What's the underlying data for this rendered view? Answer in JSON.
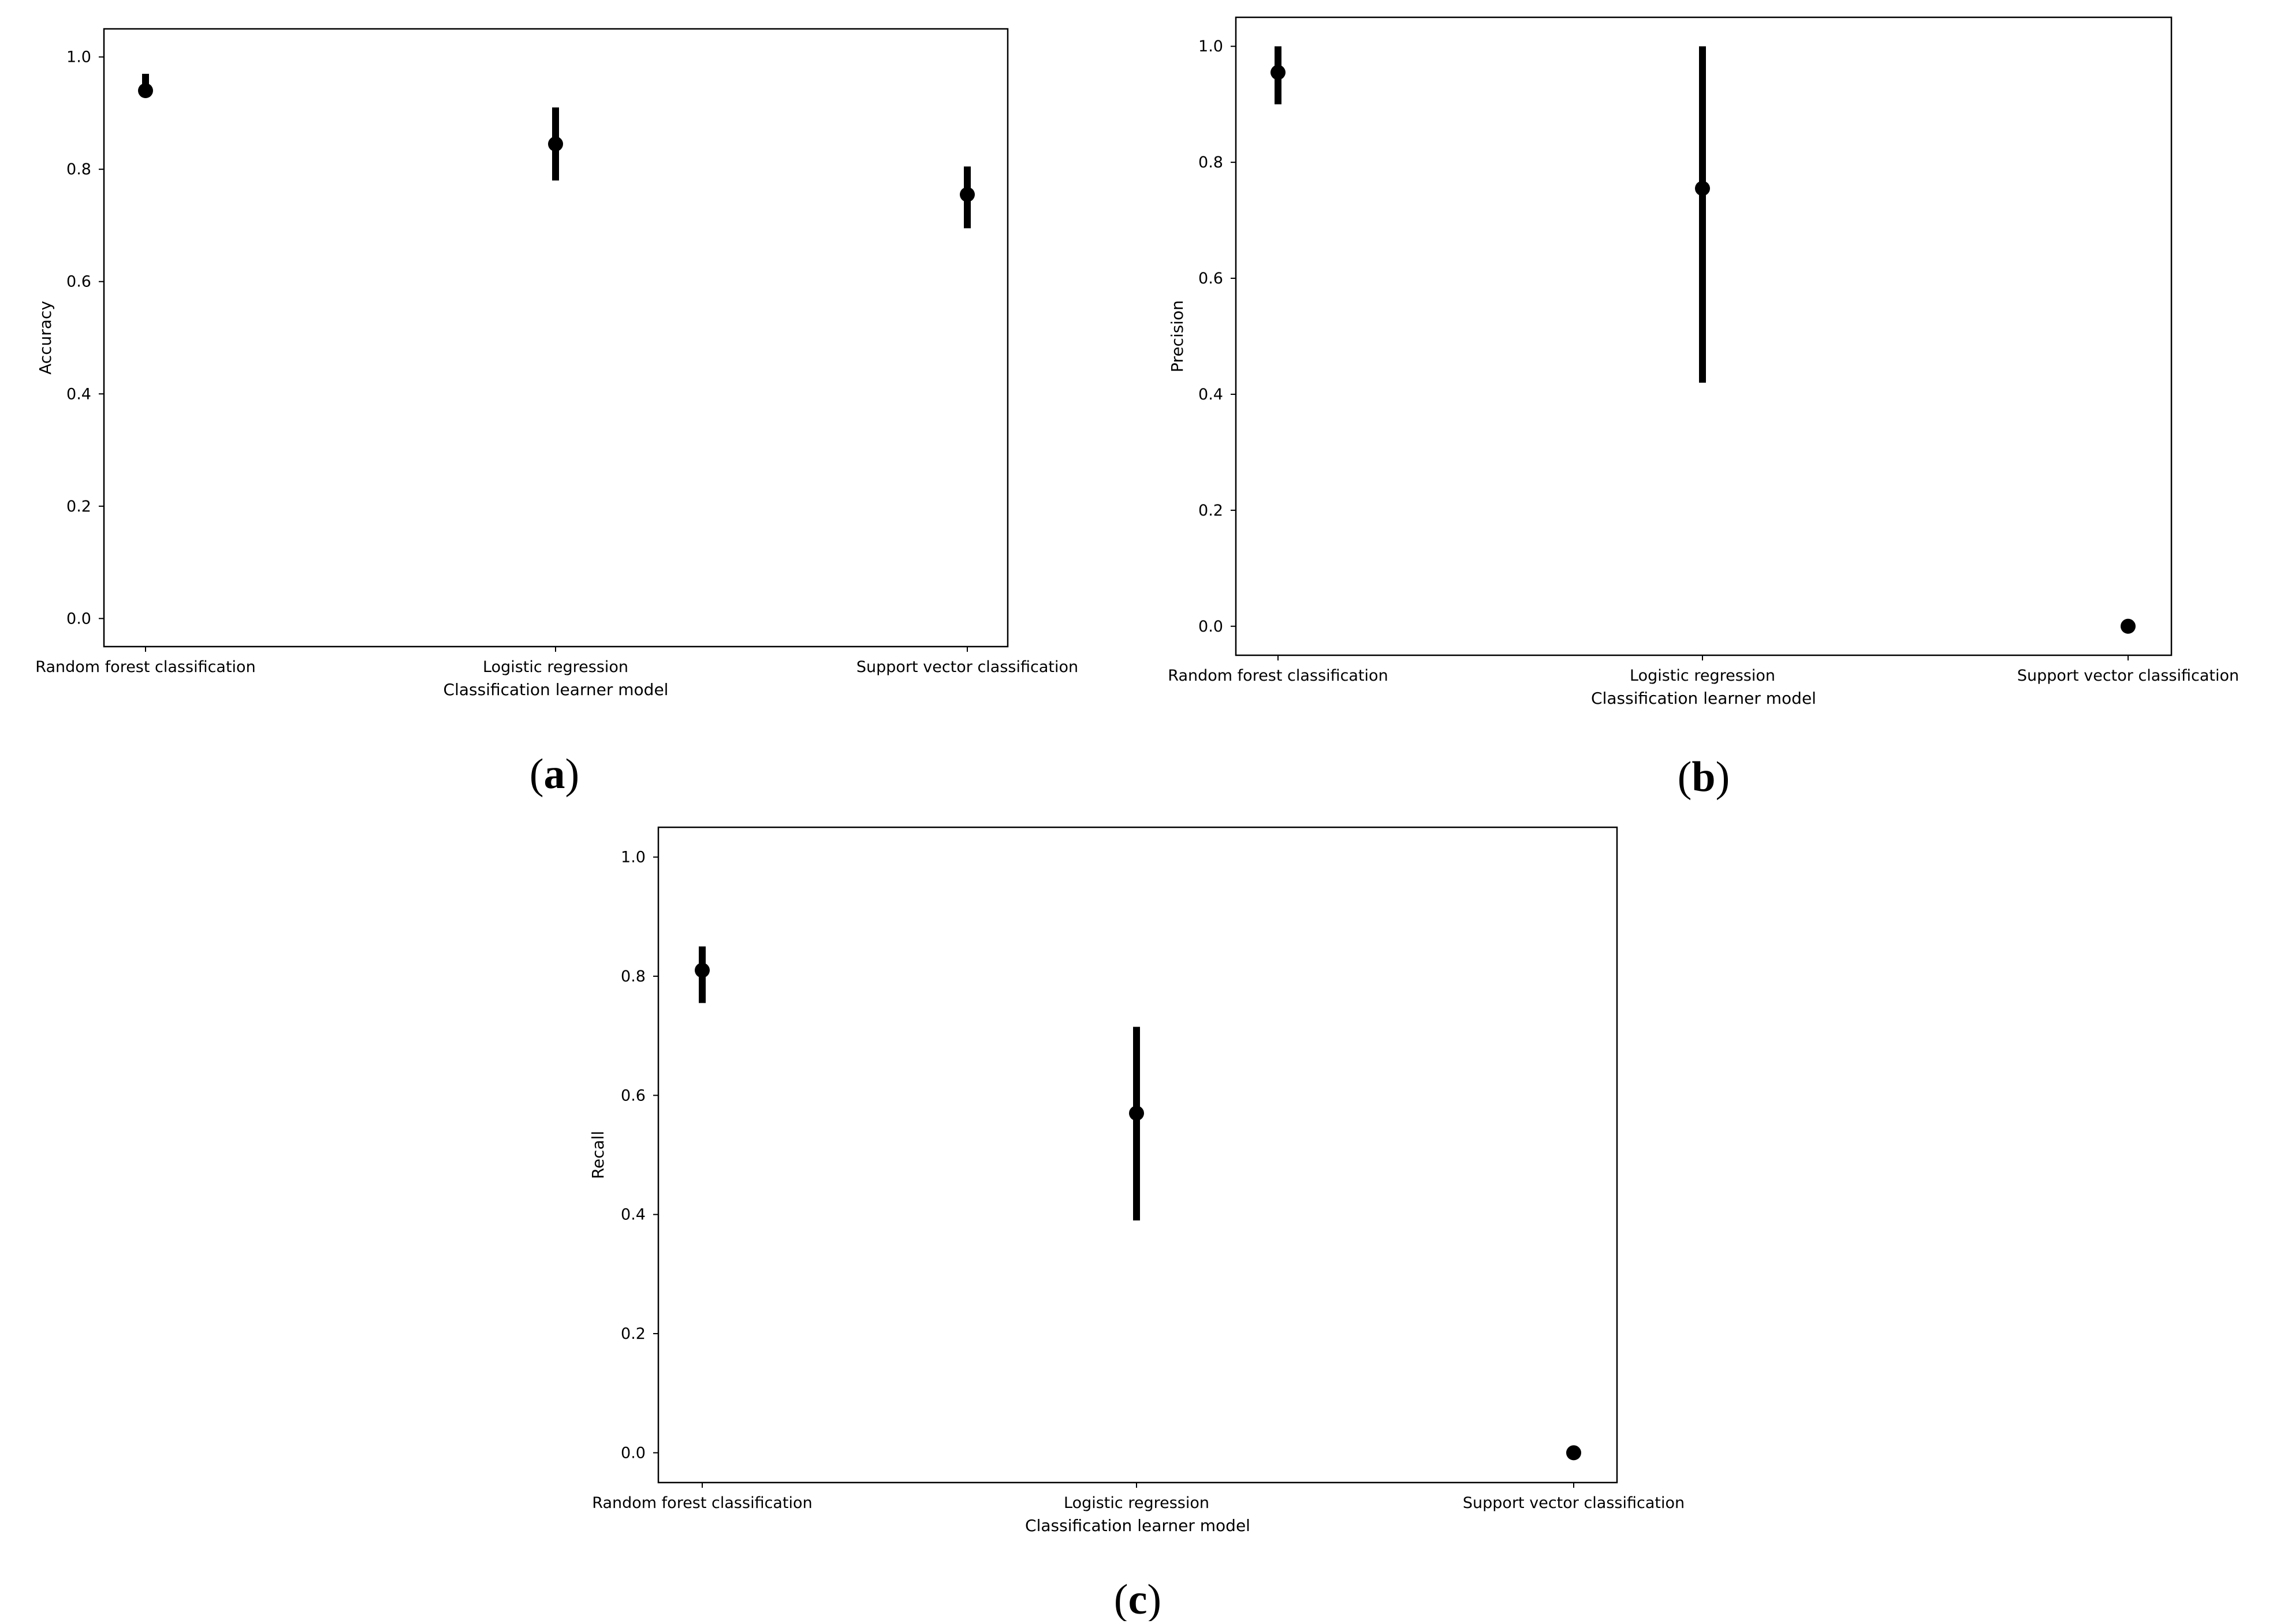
{
  "colors": {
    "marks": "#000000",
    "frame": "#000000",
    "background": "#ffffff"
  },
  "chart_data": [
    {
      "type": "scatter",
      "panel_label": {
        "open": "(",
        "letter": "a",
        "close": ")"
      },
      "title": "",
      "xlabel": "Classification learner model",
      "ylabel": "Accuracy",
      "ylim": [
        -0.05,
        1.05
      ],
      "yticks": [
        0.0,
        0.2,
        0.4,
        0.6,
        0.8,
        1.0
      ],
      "ytick_labels": [
        "0.0",
        "0.2",
        "0.4",
        "0.6",
        "0.8",
        "1.0"
      ],
      "categories": [
        "Random forest classification",
        "Logistic regression",
        "Support vector classification"
      ],
      "values": [
        0.94,
        0.845,
        0.755
      ],
      "error_low": [
        0.935,
        0.78,
        0.695
      ],
      "error_high": [
        0.97,
        0.91,
        0.805
      ],
      "grid": false,
      "legend": "none"
    },
    {
      "type": "scatter",
      "panel_label": {
        "open": "(",
        "letter": "b",
        "close": ")"
      },
      "title": "",
      "xlabel": "Classification learner model",
      "ylabel": "Precision",
      "ylim": [
        -0.05,
        1.05
      ],
      "yticks": [
        0.0,
        0.2,
        0.4,
        0.6,
        0.8,
        1.0
      ],
      "ytick_labels": [
        "0.0",
        "0.2",
        "0.4",
        "0.6",
        "0.8",
        "1.0"
      ],
      "categories": [
        "Random forest classification",
        "Logistic regression",
        "Support vector classification"
      ],
      "values": [
        0.955,
        0.755,
        0.0
      ],
      "error_low": [
        0.9,
        0.42,
        0.0
      ],
      "error_high": [
        1.0,
        1.0,
        0.0
      ],
      "grid": false,
      "legend": "none"
    },
    {
      "type": "scatter",
      "panel_label": {
        "open": "(",
        "letter": "c",
        "close": ")"
      },
      "title": "",
      "xlabel": "Classification learner model",
      "ylabel": "Recall",
      "ylim": [
        -0.05,
        1.05
      ],
      "yticks": [
        0.0,
        0.2,
        0.4,
        0.6,
        0.8,
        1.0
      ],
      "ytick_labels": [
        "0.0",
        "0.2",
        "0.4",
        "0.6",
        "0.8",
        "1.0"
      ],
      "categories": [
        "Random forest classification",
        "Logistic regression",
        "Support vector classification"
      ],
      "values": [
        0.81,
        0.57,
        0.0
      ],
      "error_low": [
        0.755,
        0.39,
        0.0
      ],
      "error_high": [
        0.85,
        0.715,
        0.0
      ],
      "grid": false,
      "legend": "none"
    }
  ]
}
